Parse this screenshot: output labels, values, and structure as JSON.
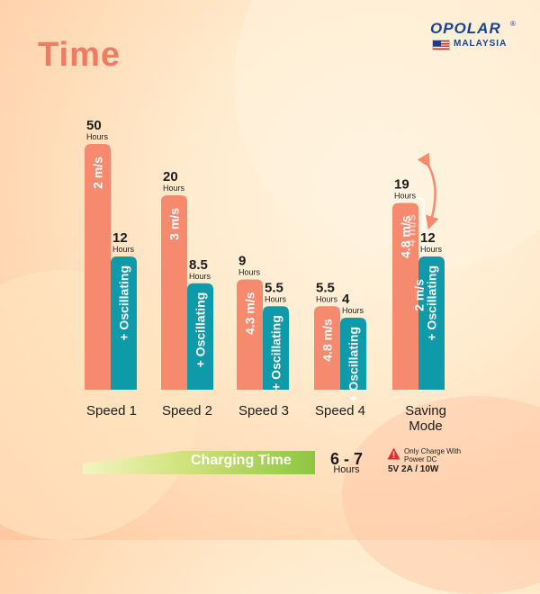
{
  "title": "Time",
  "brand": {
    "name": "OPOLAR",
    "registered": "®",
    "region": "MALAYSIA"
  },
  "colors": {
    "speed_bar": "#f58a6e",
    "oscillating_bar": "#0e9aa8",
    "title": "#f17a62",
    "brand": "#17429a",
    "charge_band_start": "#f4f3c0",
    "charge_band_end": "#8dc641"
  },
  "chart_data": {
    "type": "bar",
    "unit": "Hours",
    "categories": [
      "Speed 1",
      "Speed 2",
      "Speed 3",
      "Speed 4",
      "Saving Mode"
    ],
    "series": [
      {
        "values": [
          50,
          20,
          9,
          5.5,
          19
        ],
        "bar_labels": [
          "2 m/s",
          "3 m/s",
          "4.3 m/s",
          "4.8 m/s",
          "4.8 m/s"
        ]
      },
      {
        "values": [
          12,
          8.5,
          5.5,
          4,
          12
        ],
        "bar_labels": [
          "+ Oscillating",
          "+ Oscillating",
          "+ Oscillating",
          "+ Oscillating",
          "+ Oscillating"
        ]
      }
    ],
    "saving_mode_cycle_labels": [
      "4.8 m/s",
      "4 m/s",
      "2 m/s"
    ]
  },
  "charging": {
    "label": "Charging Time",
    "value": "6 - 7",
    "unit": "Hours",
    "warning_line1": "Only Charge With",
    "warning_line2": "Power DC",
    "spec": "5V 2A / 10W"
  }
}
